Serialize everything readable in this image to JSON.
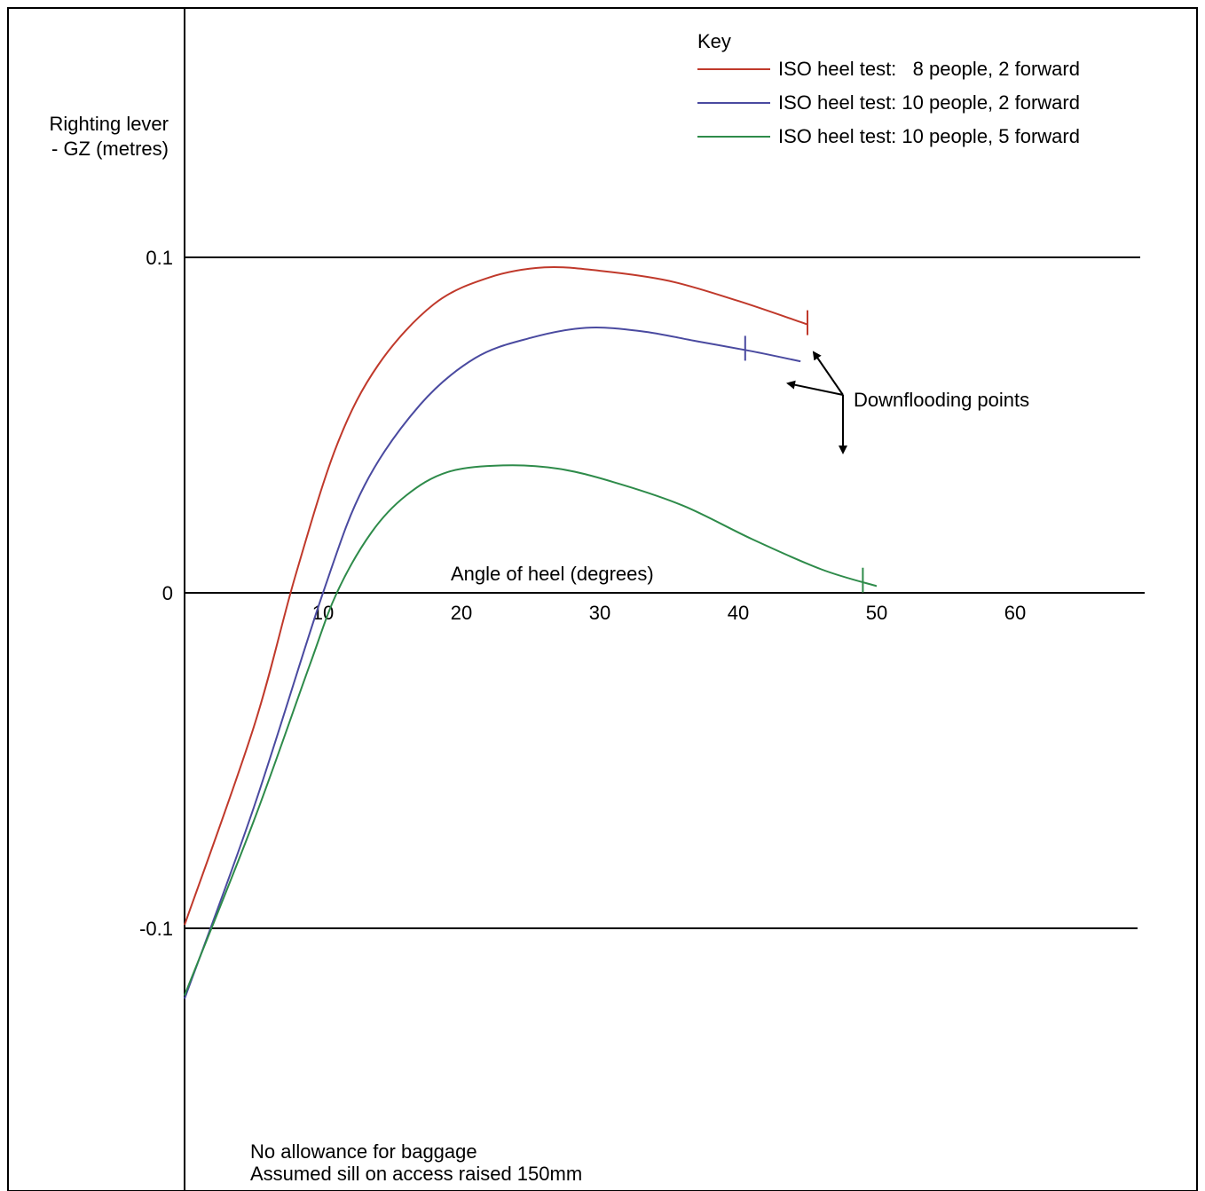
{
  "chart_data": {
    "type": "line",
    "ylabel_line1": "Righting lever",
    "ylabel_line2": "- GZ (metres)",
    "xlabel": "Angle of heel (degrees)",
    "xticks": [
      10,
      20,
      30,
      40,
      50,
      60
    ],
    "yticks": [
      0.1,
      0,
      -0.1
    ],
    "ytick_labels": [
      "0.1",
      "0",
      "-0.1"
    ],
    "xlim": [
      0,
      70
    ],
    "ylim": [
      -0.13,
      0.1
    ],
    "grid": "horizontal lines at 0.1 and -0.1",
    "legend_title": "Key",
    "legend_position": "top-right",
    "series": [
      {
        "name": "ISO heel test:   8 people, 2 forward",
        "color": "#c0392b",
        "points": [
          [
            0,
            -0.099
          ],
          [
            5,
            -0.04
          ],
          [
            8,
            0.005
          ],
          [
            11,
            0.044
          ],
          [
            14,
            0.068
          ],
          [
            18,
            0.086
          ],
          [
            22,
            0.094
          ],
          [
            26,
            0.097
          ],
          [
            30,
            0.096
          ],
          [
            35,
            0.093
          ],
          [
            40,
            0.087
          ],
          [
            45,
            0.08
          ]
        ],
        "downflooding": 45
      },
      {
        "name": "ISO heel test: 10 people, 2 forward",
        "color": "#4a4aa0",
        "points": [
          [
            0,
            -0.121
          ],
          [
            5,
            -0.064
          ],
          [
            10,
            0.0
          ],
          [
            13,
            0.032
          ],
          [
            17,
            0.056
          ],
          [
            21,
            0.07
          ],
          [
            25,
            0.076
          ],
          [
            29,
            0.079
          ],
          [
            33,
            0.078
          ],
          [
            37,
            0.075
          ],
          [
            41,
            0.072
          ],
          [
            44.5,
            0.069
          ]
        ],
        "downflooding": 40.5
      },
      {
        "name": "ISO heel test: 10 people, 5 forward",
        "color": "#2e8b4a",
        "points": [
          [
            0,
            -0.12
          ],
          [
            5,
            -0.068
          ],
          [
            9,
            -0.022
          ],
          [
            11,
            0.0
          ],
          [
            13.5,
            0.018
          ],
          [
            16,
            0.029
          ],
          [
            19,
            0.036
          ],
          [
            23,
            0.038
          ],
          [
            27,
            0.037
          ],
          [
            31,
            0.033
          ],
          [
            36,
            0.026
          ],
          [
            41,
            0.016
          ],
          [
            46,
            0.007
          ],
          [
            50,
            0.002
          ]
        ],
        "downflooding": 49
      }
    ],
    "annotations": {
      "downflooding_label": "Downflooding points",
      "note_line1": "No allowance for baggage",
      "note_line2": "Assumed sill on access raised 150mm"
    }
  }
}
